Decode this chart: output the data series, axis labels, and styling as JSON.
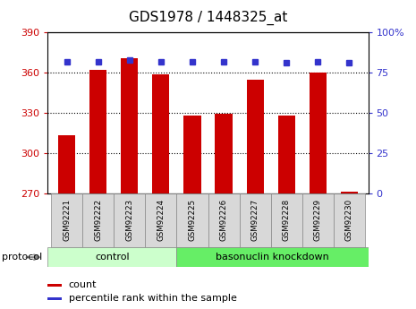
{
  "title": "GDS1978 / 1448325_at",
  "samples": [
    "GSM92221",
    "GSM92222",
    "GSM92223",
    "GSM92224",
    "GSM92225",
    "GSM92226",
    "GSM92227",
    "GSM92228",
    "GSM92229",
    "GSM92230"
  ],
  "counts": [
    313,
    362,
    371,
    359,
    328,
    329,
    355,
    328,
    360,
    271
  ],
  "percentile_ranks": [
    82,
    82,
    83,
    82,
    82,
    82,
    82,
    81,
    82,
    81
  ],
  "control_count": 4,
  "ylim_left": [
    270,
    390
  ],
  "ylim_right": [
    0,
    100
  ],
  "yticks_left": [
    270,
    300,
    330,
    360,
    390
  ],
  "yticks_right": [
    0,
    25,
    50,
    75,
    100
  ],
  "bar_color": "#cc0000",
  "dot_color": "#3333cc",
  "bar_width": 0.55,
  "control_bg": "#ccffcc",
  "knockdown_bg": "#66ee66",
  "protocol_label": "protocol",
  "group_labels": [
    "control",
    "basonuclin knockdown"
  ],
  "legend_count_label": "count",
  "legend_pct_label": "percentile rank within the sample",
  "tick_label_color_left": "#cc0000",
  "tick_label_color_right": "#3333cc",
  "title_fontsize": 11,
  "axis_fontsize": 8,
  "label_fontsize": 7
}
